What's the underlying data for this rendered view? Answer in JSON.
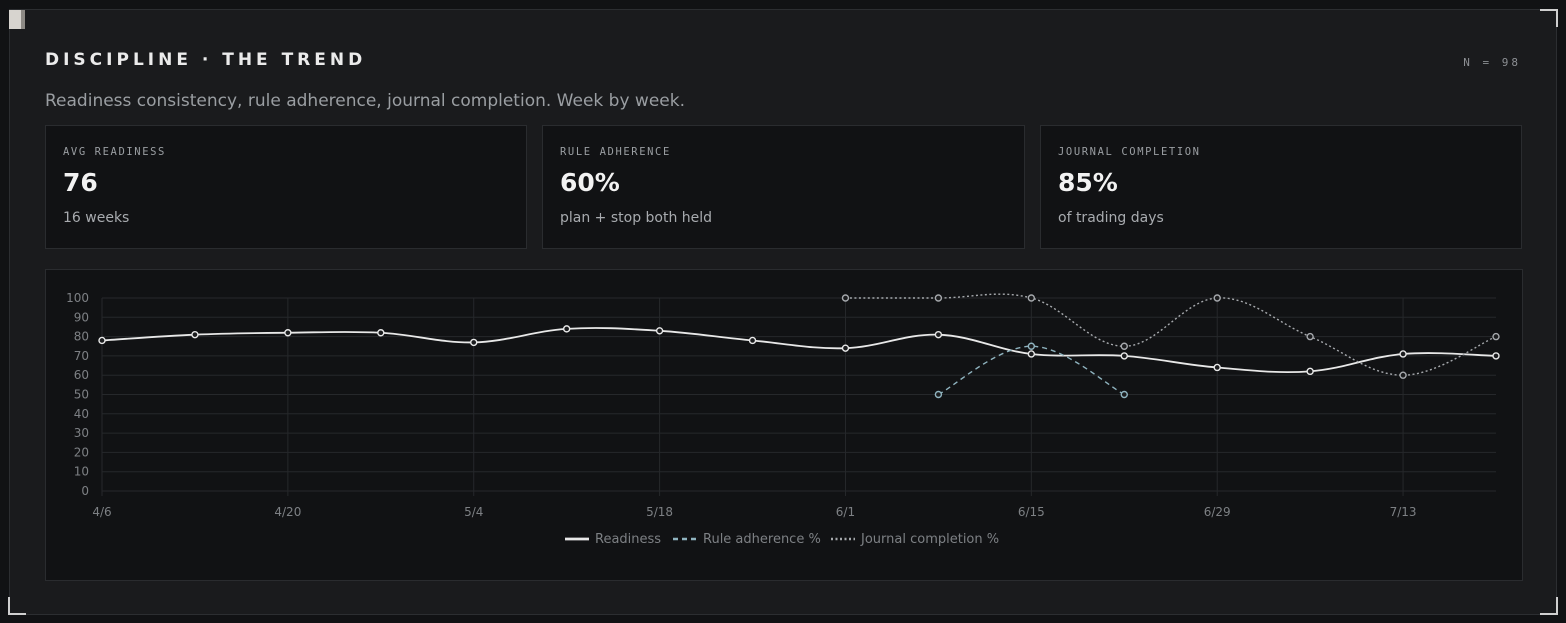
{
  "header": {
    "title": "DISCIPLINE · THE TREND",
    "sample": "N = 98",
    "subtitle": "Readiness consistency, rule adherence, journal completion. Week by week."
  },
  "stats": [
    {
      "label": "AVG READINESS",
      "value": "76",
      "note": "16 weeks"
    },
    {
      "label": "RULE ADHERENCE",
      "value": "60%",
      "note": "plan + stop both held"
    },
    {
      "label": "JOURNAL COMPLETION",
      "value": "85%",
      "note": "of trading days"
    }
  ],
  "colors": {
    "readiness": "#e8e8e8",
    "rule_adherence": "#8fb3bf",
    "journal_completion": "#a6a9ad",
    "grid": "#26282b",
    "point_fill": "#1b1c1e"
  },
  "chart_data": {
    "type": "line",
    "x": [
      "4/6",
      "4/13",
      "4/20",
      "4/27",
      "5/4",
      "5/11",
      "5/18",
      "5/25",
      "6/1",
      "6/8",
      "6/15",
      "6/22",
      "6/29",
      "7/6",
      "7/13",
      "7/20"
    ],
    "x_tick_labels": [
      "4/6",
      "4/20",
      "5/4",
      "5/18",
      "6/1",
      "6/15",
      "6/29",
      "7/13"
    ],
    "y_ticks": [
      0,
      10,
      20,
      30,
      40,
      50,
      60,
      70,
      80,
      90,
      100
    ],
    "ylim": [
      0,
      100
    ],
    "grid": true,
    "legend_position": "bottom",
    "series": [
      {
        "name": "Readiness",
        "style": "solid",
        "values": [
          78,
          81,
          82,
          82,
          77,
          84,
          83,
          78,
          74,
          81,
          71,
          70,
          64,
          62,
          71,
          70
        ]
      },
      {
        "name": "Rule adherence %",
        "style": "dashed",
        "values": [
          null,
          null,
          null,
          null,
          null,
          null,
          null,
          null,
          null,
          50,
          75,
          50,
          null,
          null,
          null,
          null
        ]
      },
      {
        "name": "Journal completion %",
        "style": "dotted",
        "values": [
          null,
          null,
          null,
          null,
          null,
          null,
          null,
          null,
          100,
          100,
          100,
          75,
          100,
          80,
          60,
          80
        ]
      }
    ]
  }
}
